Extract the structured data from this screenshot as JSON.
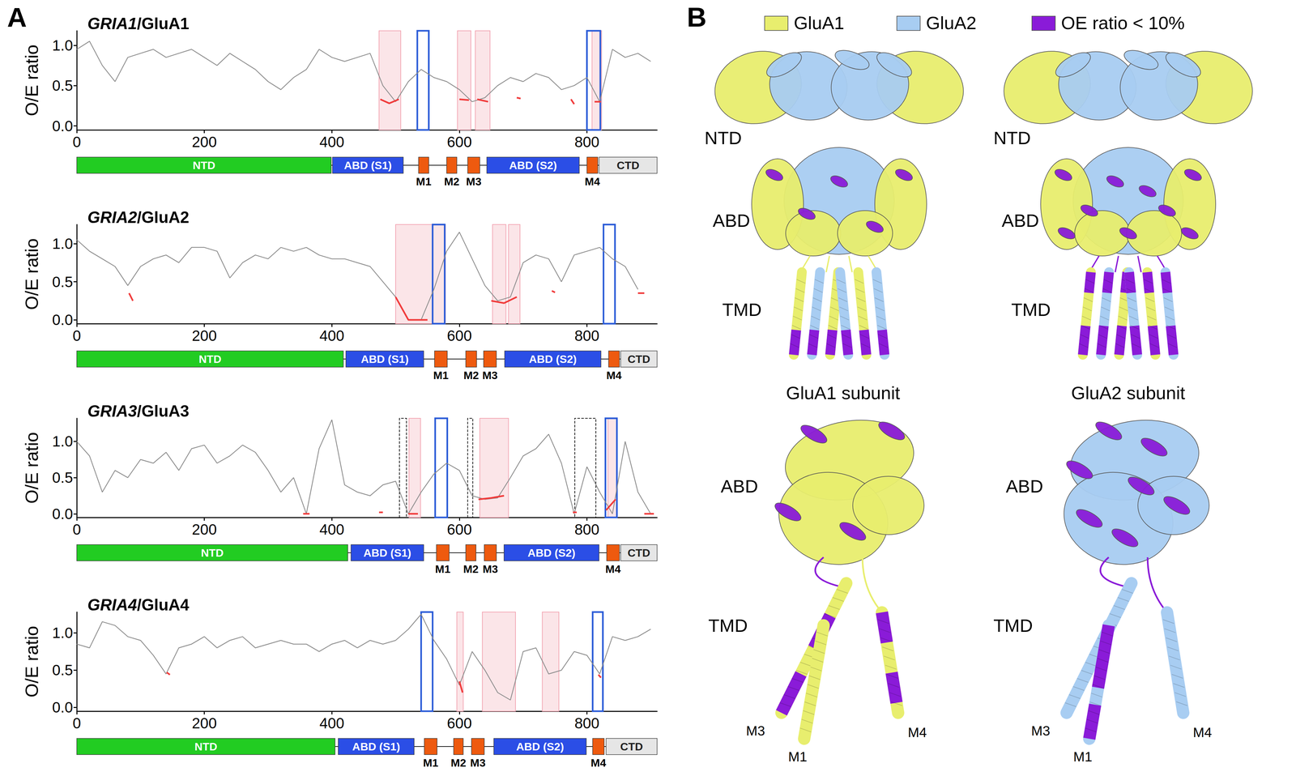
{
  "panel_labels": [
    "A",
    "B"
  ],
  "chart_data": [
    {
      "type": "line",
      "title": "GRIA1/GluA1",
      "y_label": "O/E ratio",
      "color": "#8c8c8c",
      "grid": false,
      "xlim": [
        0,
        910
      ],
      "xticks": [
        0,
        200,
        400,
        600,
        800
      ],
      "ylim": [
        -0.05,
        1.18
      ],
      "yticks": [
        {
          "value": 0,
          "label": "0.0"
        },
        {
          "value": 0.5,
          "label": "0.5"
        },
        {
          "value": 1,
          "label": "1.0"
        }
      ],
      "x": [
        0,
        20,
        40,
        60,
        80,
        100,
        120,
        140,
        160,
        180,
        200,
        220,
        240,
        260,
        280,
        300,
        320,
        340,
        360,
        380,
        400,
        420,
        440,
        460,
        480,
        500,
        520,
        540,
        560,
        580,
        600,
        620,
        640,
        660,
        680,
        700,
        720,
        740,
        760,
        780,
        800,
        820,
        840,
        860,
        880,
        900
      ],
      "values": [
        0.95,
        1.05,
        0.75,
        0.55,
        0.85,
        0.9,
        0.95,
        0.85,
        0.9,
        0.95,
        0.85,
        0.75,
        0.9,
        0.8,
        0.7,
        0.55,
        0.45,
        0.6,
        0.7,
        0.95,
        0.85,
        0.8,
        0.85,
        0.9,
        0.5,
        0.3,
        0.55,
        0.7,
        0.6,
        0.55,
        0.45,
        0.3,
        0.35,
        0.5,
        0.6,
        0.55,
        0.65,
        0.6,
        0.45,
        0.5,
        0.6,
        0.3,
        0.95,
        0.85,
        0.9,
        0.8
      ],
      "low_color": "#f03c3c",
      "low_segments": [
        [
          [
            476,
            0.33
          ],
          [
            490,
            0.28
          ],
          [
            505,
            0.33
          ]
        ],
        [
          [
            600,
            0.33
          ],
          [
            615,
            0.32
          ]
        ],
        [
          [
            628,
            0.33
          ],
          [
            645,
            0.3
          ]
        ],
        [
          [
            690,
            0.35
          ],
          [
            696,
            0.34
          ]
        ],
        [
          [
            775,
            0.33
          ],
          [
            780,
            0.27
          ]
        ],
        [
          [
            812,
            0.3
          ],
          [
            822,
            0.3
          ]
        ]
      ],
      "region_colors": {
        "pink": "#f2a0ae",
        "blue": "#2a5bd7",
        "dashed": "#000000"
      },
      "regions": {
        "pink": [
          [
            474,
            508
          ],
          [
            597,
            618
          ],
          [
            625,
            648
          ],
          [
            808,
            823
          ]
        ],
        "blue": [
          [
            534,
            552
          ],
          [
            800,
            821
          ]
        ],
        "dashed": []
      },
      "domains": [
        {
          "name": "NTD",
          "start": 0,
          "end": 399,
          "color": "#22cc22"
        },
        {
          "name": "ABD (S1)",
          "start": 401,
          "end": 512,
          "color": "#2b4ee6"
        },
        {
          "name": "M1",
          "start": 536,
          "end": 552,
          "color": "#ee5a0f"
        },
        {
          "name": "M2",
          "start": 580,
          "end": 596,
          "color": "#ee5a0f"
        },
        {
          "name": "M3",
          "start": 613,
          "end": 632,
          "color": "#ee5a0f"
        },
        {
          "name": "ABD (S2)",
          "start": 643,
          "end": 788,
          "color": "#2b4ee6"
        },
        {
          "name": "M4",
          "start": 800,
          "end": 817,
          "color": "#ee5a0f"
        },
        {
          "name": "CTD",
          "start": 819,
          "end": 910,
          "color": "#e6e6e6"
        }
      ]
    },
    {
      "type": "line",
      "title": "GRIA2/GluA2",
      "y_label": "O/E ratio",
      "color": "#8c8c8c",
      "grid": false,
      "xlim": [
        0,
        910
      ],
      "xticks": [
        0,
        200,
        400,
        600,
        800
      ],
      "ylim": [
        -0.05,
        1.25
      ],
      "yticks": [
        {
          "value": 0,
          "label": "0.0"
        },
        {
          "value": 0.5,
          "label": "0.5"
        },
        {
          "value": 1,
          "label": "1.0"
        }
      ],
      "x": [
        0,
        20,
        40,
        60,
        80,
        100,
        120,
        140,
        160,
        180,
        200,
        220,
        240,
        260,
        280,
        300,
        320,
        340,
        360,
        380,
        400,
        420,
        440,
        460,
        480,
        500,
        520,
        540,
        560,
        580,
        600,
        620,
        640,
        660,
        680,
        700,
        720,
        740,
        760,
        780,
        800,
        820,
        840,
        860,
        880
      ],
      "values": [
        1.05,
        0.9,
        0.8,
        0.7,
        0.45,
        0.7,
        0.8,
        0.85,
        0.75,
        0.95,
        0.95,
        0.9,
        0.55,
        0.75,
        0.85,
        0.8,
        0.95,
        0.9,
        0.95,
        0.85,
        0.8,
        0.8,
        0.75,
        0.7,
        0.5,
        0.3,
        0.0,
        0.0,
        0.4,
        0.9,
        1.15,
        0.8,
        0.45,
        0.25,
        0.3,
        0.75,
        0.85,
        0.8,
        0.5,
        0.85,
        0.9,
        0.95,
        0.8,
        0.7,
        0.4
      ],
      "low_color": "#f03c3c",
      "low_segments": [
        [
          [
            82,
            0.35
          ],
          [
            88,
            0.25
          ]
        ],
        [
          [
            500,
            0.3
          ],
          [
            510,
            0.15
          ],
          [
            520,
            0.0
          ],
          [
            550,
            0.0
          ]
        ],
        [
          [
            650,
            0.25
          ],
          [
            670,
            0.22
          ],
          [
            690,
            0.3
          ]
        ],
        [
          [
            745,
            0.38
          ],
          [
            750,
            0.36
          ]
        ],
        [
          [
            880,
            0.35
          ],
          [
            890,
            0.35
          ]
        ]
      ],
      "region_colors": {
        "pink": "#f2a0ae",
        "blue": "#2a5bd7",
        "dashed": "#000000"
      },
      "regions": {
        "pink": [
          [
            500,
            578
          ],
          [
            652,
            673
          ],
          [
            677,
            695
          ]
        ],
        "blue": [
          [
            558,
            577
          ],
          [
            826,
            844
          ]
        ],
        "dashed": []
      },
      "domains": [
        {
          "name": "NTD",
          "start": 0,
          "end": 418,
          "color": "#22cc22"
        },
        {
          "name": "ABD (S1)",
          "start": 422,
          "end": 544,
          "color": "#2b4ee6"
        },
        {
          "name": "M1",
          "start": 561,
          "end": 581,
          "color": "#ee5a0f"
        },
        {
          "name": "M2",
          "start": 610,
          "end": 627,
          "color": "#ee5a0f"
        },
        {
          "name": "M3",
          "start": 638,
          "end": 658,
          "color": "#ee5a0f"
        },
        {
          "name": "ABD (S2)",
          "start": 671,
          "end": 822,
          "color": "#2b4ee6"
        },
        {
          "name": "M4",
          "start": 834,
          "end": 851,
          "color": "#ee5a0f"
        },
        {
          "name": "CTD",
          "start": 853,
          "end": 910,
          "color": "#e6e6e6"
        }
      ]
    },
    {
      "type": "line",
      "title": "GRIA3/GluA3",
      "y_label": "O/E ratio",
      "color": "#8c8c8c",
      "grid": false,
      "xlim": [
        0,
        910
      ],
      "xticks": [
        0,
        200,
        400,
        600,
        800
      ],
      "ylim": [
        -0.05,
        1.32
      ],
      "yticks": [
        {
          "value": 0,
          "label": "0.0"
        },
        {
          "value": 0.5,
          "label": "0.5"
        },
        {
          "value": 1,
          "label": "1.0"
        }
      ],
      "x": [
        0,
        20,
        40,
        60,
        80,
        100,
        120,
        140,
        160,
        180,
        200,
        220,
        240,
        260,
        280,
        300,
        320,
        340,
        360,
        380,
        400,
        420,
        440,
        460,
        480,
        500,
        520,
        540,
        560,
        580,
        600,
        620,
        640,
        660,
        680,
        700,
        720,
        740,
        760,
        780,
        800,
        820,
        840,
        860,
        880,
        900
      ],
      "values": [
        1.0,
        0.8,
        0.3,
        0.6,
        0.5,
        0.75,
        0.7,
        0.85,
        0.6,
        0.9,
        0.95,
        0.7,
        0.8,
        0.95,
        0.85,
        0.6,
        0.3,
        0.5,
        0.0,
        0.9,
        1.3,
        0.4,
        0.3,
        0.25,
        0.4,
        0.45,
        0.0,
        0.3,
        0.55,
        0.7,
        0.6,
        0.25,
        0.2,
        0.22,
        0.5,
        0.8,
        0.9,
        1.1,
        0.7,
        0.0,
        0.65,
        0.3,
        0.0,
        1.0,
        0.3,
        0.0
      ],
      "low_color": "#f03c3c",
      "low_segments": [
        [
          [
            355,
            0.0
          ],
          [
            365,
            0.0
          ]
        ],
        [
          [
            474,
            0.02
          ],
          [
            480,
            0.02
          ]
        ],
        [
          [
            520,
            0.0
          ],
          [
            535,
            0.0
          ]
        ],
        [
          [
            630,
            0.2
          ],
          [
            650,
            0.22
          ],
          [
            670,
            0.25
          ]
        ],
        [
          [
            778,
            0.02
          ],
          [
            784,
            0.02
          ]
        ],
        [
          [
            830,
            0.05
          ],
          [
            845,
            0.2
          ]
        ],
        [
          [
            890,
            0.0
          ],
          [
            905,
            0.0
          ]
        ]
      ],
      "region_colors": {
        "pink": "#f2a0ae",
        "blue": "#2a5bd7",
        "dashed": "#000000"
      },
      "regions": {
        "pink": [
          [
            521,
            539
          ],
          [
            632,
            677
          ],
          [
            833,
            847
          ]
        ],
        "blue": [
          [
            562,
            581
          ],
          [
            829,
            847
          ]
        ],
        "dashed": [
          [
            506,
            517
          ],
          [
            613,
            621
          ],
          [
            781,
            814
          ]
        ]
      },
      "domains": [
        {
          "name": "NTD",
          "start": 0,
          "end": 425,
          "color": "#22cc22"
        },
        {
          "name": "ABD (S1)",
          "start": 430,
          "end": 544,
          "color": "#2b4ee6"
        },
        {
          "name": "M1",
          "start": 564,
          "end": 584,
          "color": "#ee5a0f"
        },
        {
          "name": "M2",
          "start": 610,
          "end": 626,
          "color": "#ee5a0f"
        },
        {
          "name": "M3",
          "start": 639,
          "end": 658,
          "color": "#ee5a0f"
        },
        {
          "name": "ABD (S2)",
          "start": 670,
          "end": 819,
          "color": "#2b4ee6"
        },
        {
          "name": "M4",
          "start": 831,
          "end": 851,
          "color": "#ee5a0f"
        },
        {
          "name": "CTD",
          "start": 853,
          "end": 910,
          "color": "#e6e6e6"
        }
      ]
    },
    {
      "type": "line",
      "title": "GRIA4/GluA4",
      "y_label": "O/E ratio",
      "color": "#8c8c8c",
      "grid": false,
      "xlim": [
        0,
        910
      ],
      "xticks": [
        0,
        200,
        400,
        600,
        800
      ],
      "ylim": [
        -0.05,
        1.28
      ],
      "yticks": [
        {
          "value": 0,
          "label": "0.0"
        },
        {
          "value": 0.5,
          "label": "0.5"
        },
        {
          "value": 1,
          "label": "1.0"
        }
      ],
      "x": [
        0,
        20,
        40,
        60,
        80,
        100,
        120,
        140,
        160,
        180,
        200,
        220,
        240,
        260,
        280,
        300,
        320,
        340,
        360,
        380,
        400,
        420,
        440,
        460,
        480,
        500,
        520,
        540,
        560,
        580,
        600,
        620,
        640,
        660,
        680,
        700,
        720,
        740,
        760,
        780,
        800,
        820,
        840,
        860,
        880,
        900
      ],
      "values": [
        0.85,
        0.8,
        1.15,
        1.1,
        0.95,
        0.9,
        0.7,
        0.45,
        0.8,
        0.85,
        0.95,
        0.8,
        0.9,
        0.95,
        0.8,
        0.85,
        0.9,
        0.85,
        0.85,
        0.75,
        0.85,
        0.9,
        0.8,
        0.9,
        0.85,
        0.9,
        1.05,
        1.25,
        0.9,
        0.65,
        0.3,
        0.75,
        0.5,
        0.2,
        0.1,
        0.75,
        0.8,
        0.45,
        0.5,
        0.75,
        0.7,
        0.45,
        0.95,
        0.9,
        0.95,
        1.05
      ],
      "low_color": "#f03c3c",
      "low_segments": [
        [
          [
            141,
            0.47
          ],
          [
            146,
            0.44
          ]
        ],
        [
          [
            600,
            0.35
          ],
          [
            605,
            0.2
          ]
        ],
        [
          [
            818,
            0.44
          ],
          [
            822,
            0.4
          ]
        ]
      ],
      "region_colors": {
        "pink": "#f2a0ae",
        "blue": "#2a5bd7",
        "dashed": "#000000"
      },
      "regions": {
        "pink": [
          [
            596,
            606
          ],
          [
            636,
            688
          ],
          [
            730,
            756
          ]
        ],
        "blue": [
          [
            540,
            558
          ],
          [
            809,
            825
          ]
        ],
        "dashed": []
      },
      "domains": [
        {
          "name": "NTD",
          "start": 0,
          "end": 405,
          "color": "#22cc22"
        },
        {
          "name": "ABD (S1)",
          "start": 410,
          "end": 529,
          "color": "#2b4ee6"
        },
        {
          "name": "M1",
          "start": 545,
          "end": 565,
          "color": "#ee5a0f"
        },
        {
          "name": "M2",
          "start": 591,
          "end": 606,
          "color": "#ee5a0f"
        },
        {
          "name": "M3",
          "start": 619,
          "end": 639,
          "color": "#ee5a0f"
        },
        {
          "name": "ABD (S2)",
          "start": 654,
          "end": 799,
          "color": "#2b4ee6"
        },
        {
          "name": "M4",
          "start": 809,
          "end": 827,
          "color": "#ee5a0f"
        },
        {
          "name": "CTD",
          "start": 830,
          "end": 910,
          "color": "#e6e6e6"
        }
      ]
    }
  ],
  "structure_panel": {
    "legend": [
      {
        "name": "GluA1",
        "color": "#e8ee6e"
      },
      {
        "name": "GluA2",
        "color": "#a8cdf2"
      },
      {
        "name": "OE ratio < 10%",
        "color": "#8a1bd8"
      }
    ],
    "complexes": [
      {
        "labels": [
          "NTD",
          "ABD",
          "TMD"
        ]
      },
      {
        "labels": [
          "NTD",
          "ABD",
          "TMD"
        ]
      }
    ],
    "subunits": [
      {
        "title": "GluA1 subunit",
        "domain_labels": [
          "ABD",
          "TMD"
        ],
        "helix_labels": [
          "M3",
          "M1",
          "M4"
        ]
      },
      {
        "title": "GluA2 subunit",
        "domain_labels": [
          "ABD",
          "TMD"
        ],
        "helix_labels": [
          "M3",
          "M1",
          "M4"
        ]
      }
    ]
  }
}
